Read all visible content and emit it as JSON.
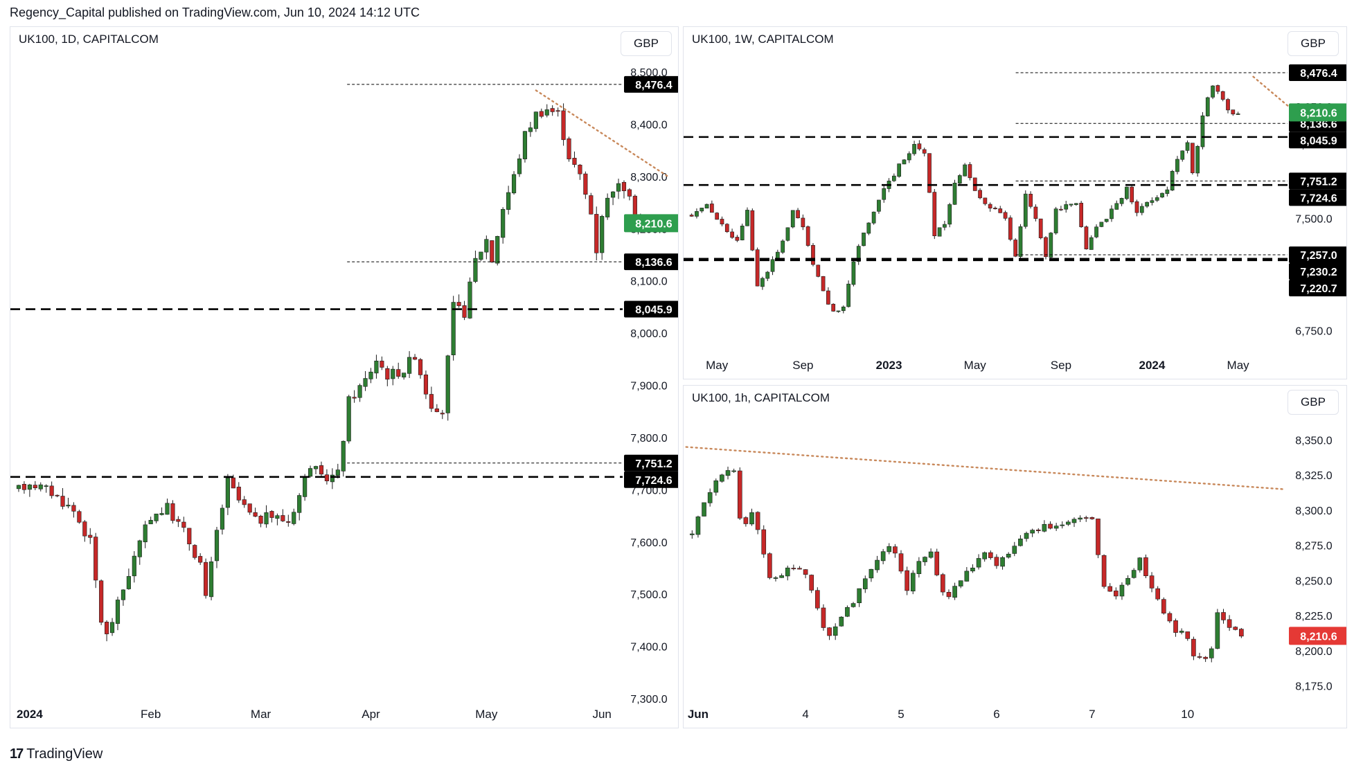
{
  "header": "Regency_Capital published on TradingView.com, Jun 10, 2024 14:12 UTC",
  "footer": {
    "brand": "TradingView",
    "logo_icon": "tradingview-logo-icon"
  },
  "colors": {
    "up": "#089981",
    "down": "#f23645",
    "candle_up": "#2e7d32",
    "candle_down": "#c62828",
    "trend": "#c8885a",
    "last_up": "#2e9e4e",
    "last_down": "#e53935",
    "level": "#000000"
  },
  "chart_data": [
    {
      "id": "daily",
      "type": "candlestick",
      "title": "UK100, 1D, CAPITALCOM",
      "currency": "GBP",
      "ylim": [
        7300,
        8520
      ],
      "y_ticks": [
        7300,
        7400,
        7500,
        7600,
        7700,
        7800,
        7900,
        8000,
        8100,
        8200,
        8300,
        8400,
        8500
      ],
      "y_tick_labels": [
        "7,300.0",
        "7,400.0",
        "7,500.0",
        "7,600.0",
        "7,700.0",
        "7,800.0",
        "7,900.0",
        "8,000.0",
        "8,100.0",
        "8,200.0",
        "8,300.0",
        "8,400.0",
        "8,500.0"
      ],
      "x_labels": [
        {
          "label": "2024",
          "bar": 2,
          "bold": true
        },
        {
          "label": "Feb",
          "bar": 24
        },
        {
          "label": "Mar",
          "bar": 44
        },
        {
          "label": "Apr",
          "bar": 64
        },
        {
          "label": "May",
          "bar": 85
        },
        {
          "label": "Jun",
          "bar": 106
        }
      ],
      "bar_count": 110,
      "trend_style": "dotted",
      "levels": [
        {
          "value": 8476.4,
          "label": "8,476.4",
          "style": "thin-dashed"
        },
        {
          "value": 8136.6,
          "label": "8,136.6",
          "style": "thin-dashed"
        },
        {
          "value": 8045.9,
          "label": "8,045.9",
          "style": "dashed"
        },
        {
          "value": 7751.2,
          "label": "7,751.2",
          "style": "thin-dashed"
        },
        {
          "value": 7724.6,
          "label": "7,724.6",
          "style": "dashed"
        }
      ],
      "last_price": {
        "value": 8210.6,
        "label": "8,210.6",
        "direction": "up"
      },
      "trendline": [
        [
          94,
          8465
        ],
        [
          118,
          8300
        ]
      ],
      "anchors": [
        [
          0,
          7700
        ],
        [
          2,
          7715
        ],
        [
          6,
          7695
        ],
        [
          10,
          7660
        ],
        [
          13,
          7600
        ],
        [
          15,
          7450
        ],
        [
          16,
          7420
        ],
        [
          18,
          7480
        ],
        [
          21,
          7570
        ],
        [
          24,
          7650
        ],
        [
          27,
          7665
        ],
        [
          30,
          7620
        ],
        [
          33,
          7560
        ],
        [
          34,
          7490
        ],
        [
          36,
          7620
        ],
        [
          38,
          7715
        ],
        [
          40,
          7680
        ],
        [
          43,
          7640
        ],
        [
          46,
          7650
        ],
        [
          49,
          7640
        ],
        [
          51,
          7690
        ],
        [
          53,
          7750
        ],
        [
          55,
          7720
        ],
        [
          58,
          7730
        ],
        [
          60,
          7870
        ],
        [
          63,
          7910
        ],
        [
          65,
          7950
        ],
        [
          67,
          7920
        ],
        [
          70,
          7930
        ],
        [
          72,
          7960
        ],
        [
          74,
          7890
        ],
        [
          76,
          7840
        ],
        [
          77,
          7850
        ],
        [
          79,
          8050
        ],
        [
          81,
          8040
        ],
        [
          83,
          8140
        ],
        [
          85,
          8180
        ],
        [
          86,
          8140
        ],
        [
          88,
          8240
        ],
        [
          90,
          8300
        ],
        [
          92,
          8380
        ],
        [
          94,
          8420
        ],
        [
          96,
          8430
        ],
        [
          98,
          8420
        ],
        [
          100,
          8340
        ],
        [
          102,
          8300
        ],
        [
          104,
          8230
        ],
        [
          105,
          8160
        ],
        [
          106,
          8230
        ],
        [
          108,
          8280
        ],
        [
          110,
          8280
        ],
        [
          112,
          8225
        ],
        [
          113,
          8210
        ]
      ]
    },
    {
      "id": "weekly",
      "type": "candlestick",
      "title": "UK100, 1W, CAPITALCOM",
      "currency": "GBP",
      "ylim": [
        6580,
        8560
      ],
      "y_ticks": [
        6750,
        7250,
        7500,
        7750,
        8000,
        8250,
        8500
      ],
      "y_tick_labels": [
        "6,750.0",
        "7,250.0",
        "7,500.0",
        "7,750.0",
        "8,000.0",
        "8,250.0",
        "8,500.0"
      ],
      "x_labels": [
        {
          "label": "May",
          "bar": 5
        },
        {
          "label": "Sep",
          "bar": 22
        },
        {
          "label": "2023",
          "bar": 39,
          "bold": true
        },
        {
          "label": "May",
          "bar": 56
        },
        {
          "label": "Sep",
          "bar": 73
        },
        {
          "label": "2024",
          "bar": 91,
          "bold": true
        },
        {
          "label": "May",
          "bar": 108
        }
      ],
      "bar_count": 118,
      "trend_style": "dotted",
      "levels": [
        {
          "value": 8476.4,
          "label": "8,476.4",
          "style": "thin-dashed"
        },
        {
          "value": 8136.6,
          "label": "8,136.6",
          "style": "thin-dashed"
        },
        {
          "value": 8045.9,
          "label": "8,045.9",
          "style": "dashed"
        },
        {
          "value": 7751.2,
          "label": "7,751.2",
          "style": "thin-dashed"
        },
        {
          "value": 7724.6,
          "label": "7,724.6",
          "style": "dashed"
        },
        {
          "value": 7257.0,
          "label": "7,257.0",
          "style": "thin-dashed"
        },
        {
          "value": 7230.2,
          "label": "7,230.2",
          "style": "dashed"
        },
        {
          "value": 7220.7,
          "label": "7,220.7",
          "style": "dashed"
        }
      ],
      "last_price": {
        "value": 8210.6,
        "label": "8,210.6",
        "direction": "up"
      },
      "trendline": [
        [
          111,
          8450
        ],
        [
          118,
          8250
        ]
      ],
      "anchors": [
        [
          0,
          7520
        ],
        [
          3,
          7600
        ],
        [
          6,
          7450
        ],
        [
          9,
          7350
        ],
        [
          11,
          7550
        ],
        [
          13,
          7050
        ],
        [
          15,
          7150
        ],
        [
          18,
          7350
        ],
        [
          20,
          7550
        ],
        [
          22,
          7450
        ],
        [
          24,
          7200
        ],
        [
          26,
          7000
        ],
        [
          28,
          6880
        ],
        [
          30,
          6900
        ],
        [
          32,
          7200
        ],
        [
          34,
          7400
        ],
        [
          36,
          7550
        ],
        [
          38,
          7700
        ],
        [
          40,
          7800
        ],
        [
          42,
          7900
        ],
        [
          44,
          8000
        ],
        [
          46,
          7950
        ],
        [
          48,
          7400
        ],
        [
          50,
          7450
        ],
        [
          52,
          7750
        ],
        [
          54,
          7850
        ],
        [
          56,
          7700
        ],
        [
          58,
          7600
        ],
        [
          60,
          7550
        ],
        [
          62,
          7500
        ],
        [
          64,
          7250
        ],
        [
          66,
          7650
        ],
        [
          68,
          7500
        ],
        [
          70,
          7250
        ],
        [
          72,
          7550
        ],
        [
          74,
          7600
        ],
        [
          76,
          7600
        ],
        [
          78,
          7300
        ],
        [
          80,
          7450
        ],
        [
          82,
          7500
        ],
        [
          84,
          7600
        ],
        [
          86,
          7700
        ],
        [
          88,
          7550
        ],
        [
          90,
          7600
        ],
        [
          92,
          7650
        ],
        [
          94,
          7700
        ],
        [
          96,
          7900
        ],
        [
          98,
          8000
        ],
        [
          99,
          7800
        ],
        [
          101,
          8200
        ],
        [
          103,
          8400
        ],
        [
          104,
          8340
        ],
        [
          105,
          8300
        ],
        [
          106,
          8220
        ],
        [
          107,
          8200
        ],
        [
          108,
          8210
        ]
      ]
    },
    {
      "id": "hourly",
      "type": "candlestick",
      "title": "UK100, 1h, CAPITALCOM",
      "currency": "GBP",
      "ylim": [
        8162,
        8365
      ],
      "y_ticks": [
        8175,
        8200,
        8225,
        8250,
        8275,
        8300,
        8325,
        8350
      ],
      "y_tick_labels": [
        "8,175.0",
        "8,200.0",
        "8,225.0",
        "8,250.0",
        "8,275.0",
        "8,300.0",
        "8,325.0",
        "8,350.0"
      ],
      "x_labels": [
        {
          "label": "Jun",
          "bar": 1,
          "bold": true
        },
        {
          "label": "4",
          "bar": 19
        },
        {
          "label": "5",
          "bar": 35
        },
        {
          "label": "6",
          "bar": 51
        },
        {
          "label": "7",
          "bar": 67
        },
        {
          "label": "10",
          "bar": 83
        }
      ],
      "bar_count": 100,
      "trend_style": "dotted",
      "levels": [],
      "last_price": {
        "value": 8210.6,
        "label": "8,210.6",
        "direction": "down"
      },
      "trendline": [
        [
          -1,
          8345
        ],
        [
          99,
          8315
        ]
      ],
      "anchors": [
        [
          0,
          8282
        ],
        [
          2,
          8305
        ],
        [
          4,
          8320
        ],
        [
          6,
          8328
        ],
        [
          7,
          8330
        ],
        [
          8,
          8295
        ],
        [
          9,
          8290
        ],
        [
          10,
          8298
        ],
        [
          12,
          8270
        ],
        [
          13,
          8250
        ],
        [
          15,
          8255
        ],
        [
          17,
          8260
        ],
        [
          18,
          8260
        ],
        [
          20,
          8245
        ],
        [
          22,
          8215
        ],
        [
          23,
          8210
        ],
        [
          25,
          8225
        ],
        [
          27,
          8235
        ],
        [
          29,
          8250
        ],
        [
          31,
          8265
        ],
        [
          33,
          8275
        ],
        [
          34,
          8270
        ],
        [
          35,
          8255
        ],
        [
          36,
          8245
        ],
        [
          38,
          8265
        ],
        [
          40,
          8270
        ],
        [
          42,
          8240
        ],
        [
          43,
          8240
        ],
        [
          45,
          8250
        ],
        [
          47,
          8260
        ],
        [
          49,
          8270
        ],
        [
          51,
          8262
        ],
        [
          53,
          8270
        ],
        [
          55,
          8278
        ],
        [
          57,
          8285
        ],
        [
          59,
          8290
        ],
        [
          61,
          8288
        ],
        [
          63,
          8292
        ],
        [
          65,
          8295
        ],
        [
          67,
          8295
        ],
        [
          68,
          8270
        ],
        [
          69,
          8245
        ],
        [
          71,
          8240
        ],
        [
          73,
          8250
        ],
        [
          75,
          8265
        ],
        [
          77,
          8245
        ],
        [
          79,
          8225
        ],
        [
          81,
          8215
        ],
        [
          83,
          8210
        ],
        [
          84,
          8195
        ],
        [
          86,
          8195
        ],
        [
          87,
          8200
        ],
        [
          88,
          8225
        ],
        [
          90,
          8215
        ],
        [
          91,
          8215
        ],
        [
          92,
          8210
        ]
      ]
    }
  ]
}
